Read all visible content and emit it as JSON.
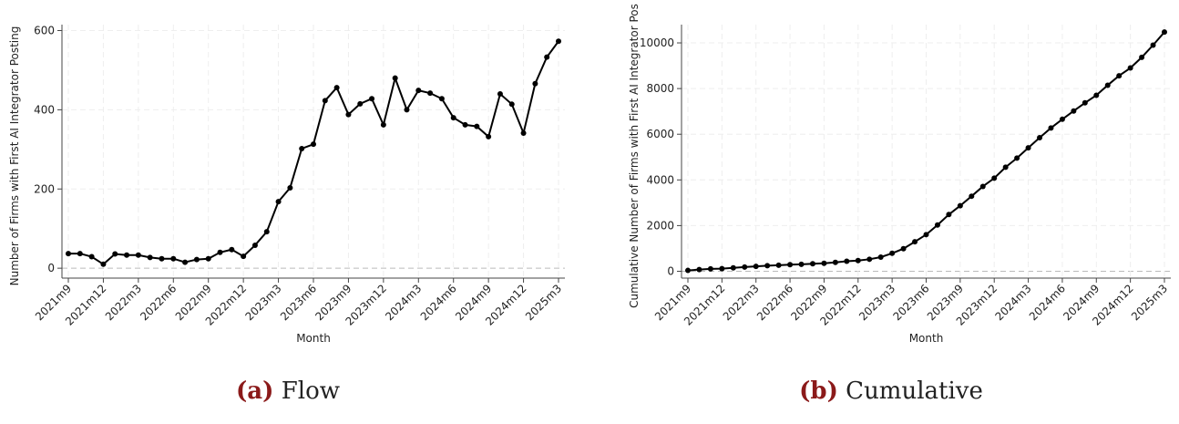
{
  "chart_data": [
    {
      "type": "line",
      "caption_label": "(a)",
      "caption_text": "Flow",
      "x_label": "Month",
      "y_label": "Number of Firms with First AI Integrator Posting",
      "categories": [
        "2021m9",
        null,
        null,
        "2021m12",
        null,
        null,
        "2022m3",
        null,
        null,
        "2022m6",
        null,
        null,
        "2022m9",
        null,
        null,
        "2022m12",
        null,
        null,
        "2023m3",
        null,
        null,
        "2023m6",
        null,
        null,
        "2023m9",
        null,
        null,
        "2023m12",
        null,
        null,
        "2024m3",
        null,
        null,
        "2024m6",
        null,
        null,
        "2024m9",
        null,
        null,
        "2024m12",
        null,
        null,
        "2025m3"
      ],
      "series": [
        {
          "color": "#000000",
          "values": [
            37,
            37,
            29,
            10,
            36,
            33,
            33,
            27,
            24,
            24,
            15,
            22,
            24,
            40,
            47,
            30,
            58,
            92,
            168,
            203,
            302,
            313,
            423,
            456,
            388,
            415,
            428,
            362,
            480,
            400,
            449,
            442,
            428,
            380,
            362,
            358,
            332,
            440,
            414,
            341,
            466,
            533,
            573
          ]
        }
      ],
      "ylim": [
        -25,
        615
      ],
      "yticks": [
        0,
        200,
        400,
        600
      ],
      "grid": true
    },
    {
      "type": "line",
      "caption_label": "(b)",
      "caption_text": "Cumulative",
      "x_label": "Month",
      "y_label": "Cumulative Number of Firms with First AI Integrator Pos",
      "categories": [
        "2021m9",
        null,
        null,
        "2021m12",
        null,
        null,
        "2022m3",
        null,
        null,
        "2022m6",
        null,
        null,
        "2022m9",
        null,
        null,
        "2022m12",
        null,
        null,
        "2023m3",
        null,
        null,
        "2023m6",
        null,
        null,
        "2023m9",
        null,
        null,
        "2023m12",
        null,
        null,
        "2024m3",
        null,
        null,
        "2024m6",
        null,
        null,
        "2024m9",
        null,
        null,
        "2024m12",
        null,
        null,
        "2025m3"
      ],
      "series": [
        {
          "color": "#000000",
          "values": [
            37,
            74,
            103,
            113,
            149,
            182,
            215,
            242,
            266,
            290,
            305,
            327,
            351,
            391,
            438,
            468,
            526,
            618,
            786,
            989,
            1291,
            1604,
            2027,
            2483,
            2871,
            3286,
            3714,
            4076,
            4556,
            4956,
            5405,
            5847,
            6275,
            6655,
            7017,
            7375,
            7707,
            8147,
            8561,
            8902,
            9368,
            9901,
            10474
          ]
        }
      ],
      "ylim": [
        -300,
        10800
      ],
      "yticks": [
        0,
        2000,
        4000,
        6000,
        8000,
        10000
      ],
      "grid": true
    }
  ]
}
